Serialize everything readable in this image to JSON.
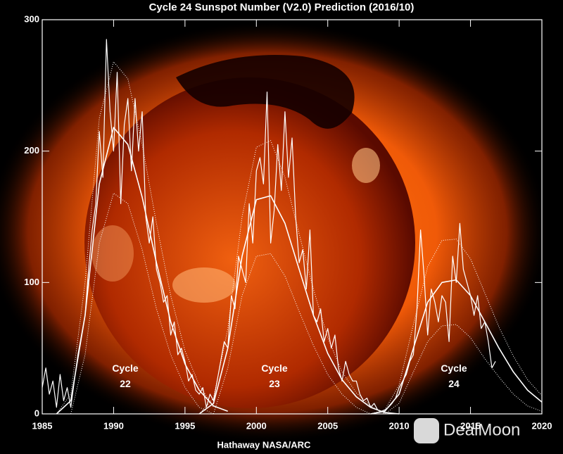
{
  "chart_data": {
    "type": "line",
    "title": "Cycle 24 Sunspot Number (V2.0) Prediction (2016/10)",
    "credit": "Hathaway  NASA/ARC",
    "watermark": "DealMoon",
    "annotations": [
      "Cycle 22",
      "Cycle 23",
      "Cycle 24"
    ],
    "xlim": [
      1985,
      2020
    ],
    "ylim": [
      0,
      300
    ],
    "xticks": [
      1985,
      1990,
      1995,
      2000,
      2005,
      2010,
      2015,
      2020
    ],
    "yticks": [
      0,
      100,
      200,
      300
    ],
    "series": [
      {
        "color": "#ffffff",
        "line_style": "solid",
        "width": 1.2,
        "x": [
          1985.0,
          1985.25,
          1985.5,
          1985.75,
          1986.0,
          1986.25,
          1986.5,
          1986.75,
          1987.0,
          1987.25,
          1987.5,
          1987.75,
          1988.0,
          1988.25,
          1988.5,
          1988.75,
          1989.0,
          1989.25,
          1989.5,
          1989.75,
          1990.0,
          1990.25,
          1990.5,
          1990.75,
          1991.0,
          1991.25,
          1991.5,
          1991.75,
          1992.0,
          1992.25,
          1992.5,
          1992.75,
          1993.0,
          1993.25,
          1993.5,
          1993.75,
          1994.0,
          1994.25,
          1994.5,
          1994.75,
          1995.0,
          1995.25,
          1995.5,
          1995.75,
          1996.0,
          1996.25,
          1996.5,
          1996.75,
          1997.0,
          1997.25,
          1997.5,
          1997.75,
          1998.0,
          1998.25,
          1998.5,
          1998.75,
          1999.0,
          1999.25,
          1999.5,
          1999.75,
          2000.0,
          2000.25,
          2000.5,
          2000.75,
          2001.0,
          2001.25,
          2001.5,
          2001.75,
          2002.0,
          2002.25,
          2002.5,
          2002.75,
          2003.0,
          2003.25,
          2003.5,
          2003.75,
          2004.0,
          2004.25,
          2004.5,
          2004.75,
          2005.0,
          2005.25,
          2005.5,
          2005.75,
          2006.0,
          2006.25,
          2006.5,
          2006.75,
          2007.0,
          2007.25,
          2007.5,
          2007.75,
          2008.0,
          2008.25,
          2008.5,
          2008.75,
          2009.0,
          2009.25,
          2009.5,
          2009.75,
          2010.0,
          2010.25,
          2010.5,
          2010.75,
          2011.0,
          2011.25,
          2011.5,
          2011.75,
          2012.0,
          2012.25,
          2012.5,
          2012.75,
          2013.0,
          2013.25,
          2013.5,
          2013.75,
          2014.0,
          2014.25,
          2014.5,
          2014.75,
          2015.0,
          2015.25,
          2015.5,
          2015.75,
          2016.0,
          2016.25,
          2016.5,
          2016.75
        ],
        "values": [
          20,
          35,
          15,
          25,
          5,
          30,
          10,
          20,
          5,
          25,
          45,
          60,
          75,
          110,
          140,
          160,
          215,
          180,
          285,
          230,
          200,
          260,
          160,
          220,
          240,
          185,
          240,
          200,
          230,
          150,
          130,
          150,
          110,
          100,
          85,
          90,
          60,
          70,
          45,
          50,
          40,
          25,
          30,
          18,
          15,
          20,
          5,
          15,
          10,
          25,
          40,
          55,
          50,
          90,
          80,
          120,
          110,
          100,
          160,
          130,
          185,
          195,
          175,
          245,
          130,
          155,
          205,
          170,
          230,
          180,
          210,
          150,
          115,
          125,
          95,
          140,
          75,
          70,
          80,
          55,
          65,
          50,
          60,
          35,
          25,
          40,
          30,
          25,
          25,
          15,
          10,
          12,
          5,
          8,
          3,
          2,
          3,
          5,
          8,
          12,
          20,
          25,
          30,
          40,
          45,
          80,
          140,
          105,
          60,
          95,
          85,
          70,
          90,
          85,
          55,
          120,
          100,
          145,
          110,
          100,
          90,
          75,
          90,
          65,
          70,
          55,
          35,
          40
        ]
      },
      {
        "color": "#ffffff",
        "line_style": "solid",
        "width": 1.6,
        "x": [
          1986,
          1987,
          1988,
          1989,
          1990,
          1991,
          1992,
          1993,
          1994,
          1995,
          1996,
          1997,
          1998,
          null,
          1996,
          1997,
          1998,
          1999,
          2000,
          2001,
          2002,
          2003,
          2004,
          2005,
          2006,
          2007,
          2008,
          2009,
          2010,
          null,
          2008,
          2009,
          2010,
          2011,
          2012,
          2013,
          2014,
          2015,
          2016,
          2017,
          2018,
          2019,
          2020
        ],
        "values": [
          0,
          10,
          75,
          175,
          218,
          205,
          165,
          115,
          70,
          38,
          18,
          6,
          2,
          null,
          0,
          8,
          50,
          120,
          163,
          166,
          145,
          110,
          75,
          46,
          26,
          13,
          5,
          1,
          0,
          null,
          0,
          2,
          15,
          50,
          85,
          100,
          102,
          90,
          70,
          50,
          32,
          18,
          9
        ]
      },
      {
        "color": "#ffffff",
        "line_style": "dotted",
        "width": 1,
        "x": [
          1986,
          1987,
          1988,
          1989,
          1990,
          1991,
          1992,
          1993,
          1994,
          1995,
          1996,
          1997,
          null,
          1996,
          1997,
          1998,
          1999,
          2000,
          2001,
          2002,
          2003,
          2004,
          2005,
          2006,
          2007,
          2008,
          2009,
          null,
          2008,
          2009,
          2010,
          2011,
          2012,
          2013,
          2014,
          2015,
          2016,
          2017,
          2018,
          2019,
          2020
        ],
        "values": [
          0,
          15,
          100,
          225,
          268,
          255,
          205,
          145,
          90,
          48,
          22,
          5,
          null,
          0,
          12,
          65,
          150,
          203,
          208,
          180,
          137,
          95,
          58,
          32,
          16,
          6,
          0,
          null,
          0,
          3,
          22,
          68,
          112,
          132,
          133,
          118,
          92,
          66,
          44,
          26,
          14
        ]
      },
      {
        "color": "#ffffff",
        "line_style": "dotted",
        "width": 1,
        "x": [
          1987,
          1988,
          1989,
          1990,
          1991,
          1992,
          1993,
          1994,
          1995,
          1996,
          1997,
          null,
          1997,
          1998,
          1999,
          2000,
          2001,
          2002,
          2003,
          2004,
          2005,
          2006,
          2007,
          2008,
          null,
          2009,
          2010,
          2011,
          2012,
          2013,
          2014,
          2015,
          2016,
          2017,
          2018,
          2019,
          2020
        ],
        "values": [
          0,
          45,
          130,
          168,
          160,
          125,
          80,
          45,
          20,
          5,
          0,
          null,
          0,
          35,
          90,
          120,
          122,
          105,
          78,
          52,
          30,
          15,
          5,
          0,
          null,
          0,
          8,
          32,
          55,
          67,
          68,
          58,
          42,
          28,
          15,
          6,
          2
        ]
      }
    ]
  }
}
